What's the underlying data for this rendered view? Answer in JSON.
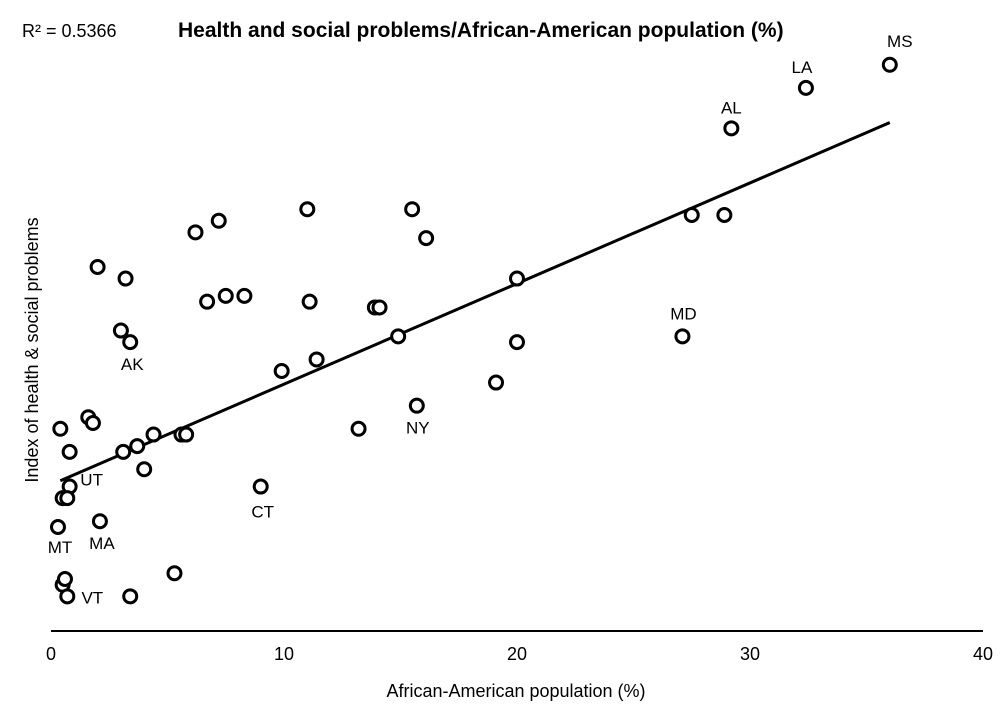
{
  "chart_data": {
    "type": "scatter",
    "title": "Health and social problems/African-American population (%)",
    "r_squared_label": "R² = 0.5366",
    "xlabel": "African-American population (%)",
    "ylabel": "Index of health & social problems",
    "xlim": [
      0,
      40
    ],
    "ylim": [
      -2.6,
      2.8
    ],
    "xticks": [
      "0",
      "10",
      "20",
      "30",
      "40"
    ],
    "trendline": {
      "x": [
        0.4,
        36
      ],
      "y": [
        -1.3,
        1.8
      ]
    },
    "points": [
      {
        "x": 36.0,
        "y": 2.3,
        "label": "MS"
      },
      {
        "x": 32.4,
        "y": 2.1,
        "label": "LA"
      },
      {
        "x": 29.2,
        "y": 1.75,
        "label": "AL"
      },
      {
        "x": 27.5,
        "y": 1.0,
        "label": ""
      },
      {
        "x": 28.9,
        "y": 1.0,
        "label": ""
      },
      {
        "x": 27.1,
        "y": -0.05,
        "label": "MD"
      },
      {
        "x": 15.5,
        "y": 1.05,
        "label": ""
      },
      {
        "x": 16.1,
        "y": 0.8,
        "label": ""
      },
      {
        "x": 11.0,
        "y": 1.05,
        "label": ""
      },
      {
        "x": 7.2,
        "y": 0.95,
        "label": ""
      },
      {
        "x": 6.2,
        "y": 0.85,
        "label": ""
      },
      {
        "x": 2.0,
        "y": 0.55,
        "label": ""
      },
      {
        "x": 3.2,
        "y": 0.45,
        "label": ""
      },
      {
        "x": 7.5,
        "y": 0.3,
        "label": ""
      },
      {
        "x": 8.3,
        "y": 0.3,
        "label": ""
      },
      {
        "x": 6.7,
        "y": 0.25,
        "label": ""
      },
      {
        "x": 11.1,
        "y": 0.25,
        "label": ""
      },
      {
        "x": 13.9,
        "y": 0.2,
        "label": ""
      },
      {
        "x": 14.1,
        "y": 0.2,
        "label": ""
      },
      {
        "x": 20.0,
        "y": 0.45,
        "label": ""
      },
      {
        "x": 3.0,
        "y": 0.0,
        "label": ""
      },
      {
        "x": 3.4,
        "y": -0.1,
        "label": "AK"
      },
      {
        "x": 14.9,
        "y": -0.05,
        "label": ""
      },
      {
        "x": 20.0,
        "y": -0.1,
        "label": ""
      },
      {
        "x": 11.4,
        "y": -0.25,
        "label": ""
      },
      {
        "x": 9.9,
        "y": -0.35,
        "label": ""
      },
      {
        "x": 19.1,
        "y": -0.45,
        "label": ""
      },
      {
        "x": 15.7,
        "y": -0.65,
        "label": "NY"
      },
      {
        "x": 13.2,
        "y": -0.85,
        "label": ""
      },
      {
        "x": 0.4,
        "y": -0.85,
        "label": ""
      },
      {
        "x": 1.6,
        "y": -0.75,
        "label": ""
      },
      {
        "x": 1.8,
        "y": -0.8,
        "label": ""
      },
      {
        "x": 0.8,
        "y": -1.05,
        "label": ""
      },
      {
        "x": 3.1,
        "y": -1.05,
        "label": ""
      },
      {
        "x": 3.7,
        "y": -1.0,
        "label": ""
      },
      {
        "x": 4.4,
        "y": -0.9,
        "label": ""
      },
      {
        "x": 5.6,
        "y": -0.9,
        "label": ""
      },
      {
        "x": 5.8,
        "y": -0.9,
        "label": ""
      },
      {
        "x": 4.0,
        "y": -1.2,
        "label": ""
      },
      {
        "x": 0.8,
        "y": -1.35,
        "label": "UT"
      },
      {
        "x": 0.5,
        "y": -1.45,
        "label": ""
      },
      {
        "x": 0.7,
        "y": -1.45,
        "label": ""
      },
      {
        "x": 0.3,
        "y": -1.7,
        "label": "MT"
      },
      {
        "x": 2.1,
        "y": -1.65,
        "label": "MA"
      },
      {
        "x": 9.0,
        "y": -1.35,
        "label": "CT"
      },
      {
        "x": 5.3,
        "y": -2.1,
        "label": ""
      },
      {
        "x": 0.5,
        "y": -2.2,
        "label": ""
      },
      {
        "x": 0.6,
        "y": -2.15,
        "label": ""
      },
      {
        "x": 0.7,
        "y": -2.3,
        "label": "VT"
      },
      {
        "x": 3.4,
        "y": -2.3,
        "label": ""
      }
    ]
  }
}
